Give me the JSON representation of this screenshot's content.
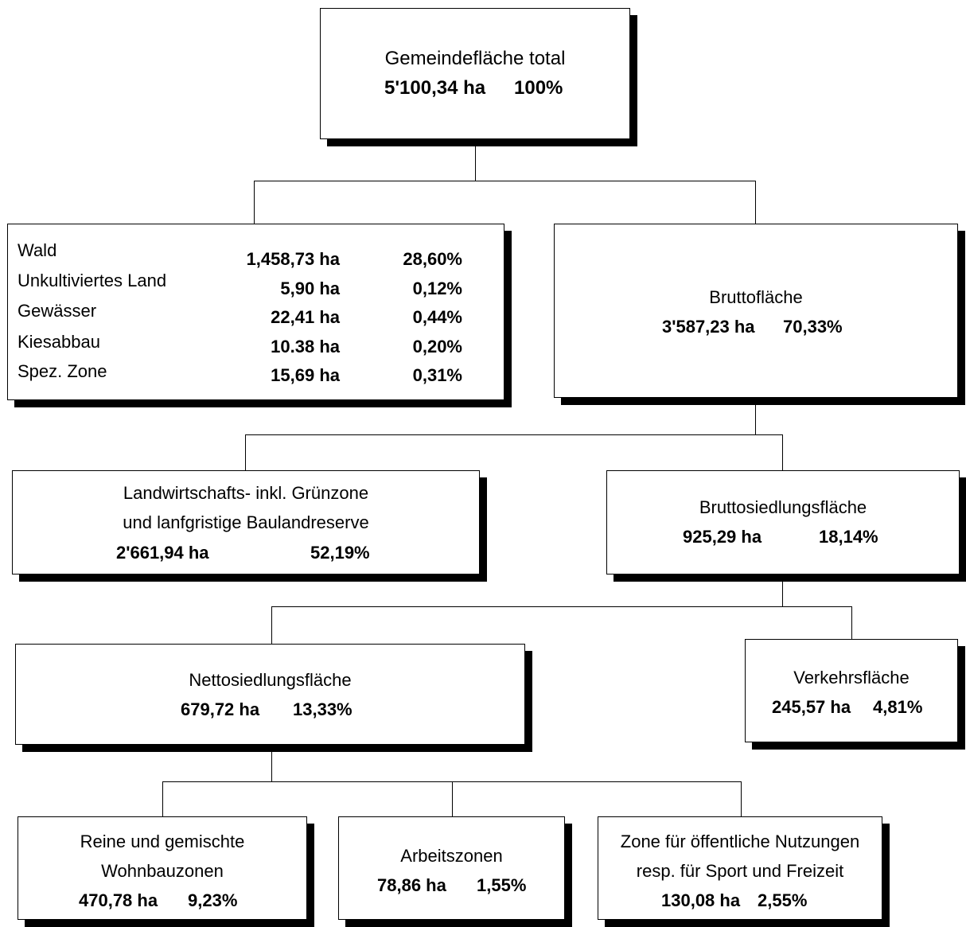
{
  "root": {
    "title": "Gemeindefläche total",
    "area": "5'100,34 ha",
    "pct": "100%"
  },
  "left_box": {
    "rows": [
      {
        "label": "Wald",
        "area": "1,458,73 ha",
        "pct": "28,60%"
      },
      {
        "label": "Unkultiviertes Land",
        "area": "5,90 ha",
        "pct": "0,12%"
      },
      {
        "label": "Gewässer",
        "area": "22,41 ha",
        "pct": "0,44%"
      },
      {
        "label": "Kiesabbau",
        "area": "10.38 ha",
        "pct": "0,20%"
      },
      {
        "label": "Spez. Zone",
        "area": "15,69 ha",
        "pct": "0,31%"
      }
    ]
  },
  "brutto": {
    "title": "Bruttofläche",
    "area": "3'587,23 ha",
    "pct": "70,33%"
  },
  "landwirtschaft": {
    "line1": "Landwirtschafts- inkl. Grünzone",
    "line2": "und lanfgristige Baulandreserve",
    "area": "2'661,94 ha",
    "pct": "52,19%"
  },
  "bruttosiedlung": {
    "title": "Bruttosiedlungsfläche",
    "area": "925,29 ha",
    "pct": "18,14%"
  },
  "netto": {
    "title": "Nettosiedlungsfläche",
    "area": "679,72 ha",
    "pct": "13,33%"
  },
  "verkehr": {
    "title": "Verkehrsfläche",
    "area": "245,57 ha",
    "pct": "4,81%"
  },
  "wohn": {
    "line1": "Reine und gemischte",
    "line2": "Wohnbauzonen",
    "area": "470,78 ha",
    "pct": "9,23%"
  },
  "arbeit": {
    "title": "Arbeitszonen",
    "area": "78,86 ha",
    "pct": "1,55%"
  },
  "zone": {
    "line1": "Zone für öffentliche Nutzungen",
    "line2": "resp. für Sport und Freizeit",
    "area": "130,08 ha",
    "pct": "2,55%"
  }
}
